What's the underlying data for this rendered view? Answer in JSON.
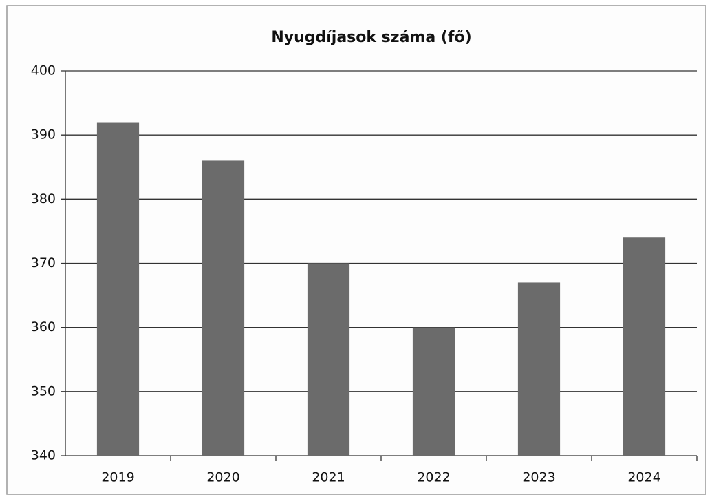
{
  "chart_data": {
    "type": "bar",
    "title": "Nyugdíjasok száma (fő)",
    "categories": [
      "2019",
      "2020",
      "2021",
      "2022",
      "2023",
      "2024"
    ],
    "values": [
      392,
      386,
      370,
      360,
      367,
      374
    ],
    "color": "#6b6b6b",
    "ylim": [
      340,
      400
    ],
    "yticks": [
      340,
      350,
      360,
      370,
      380,
      390,
      400
    ],
    "grid": true
  }
}
